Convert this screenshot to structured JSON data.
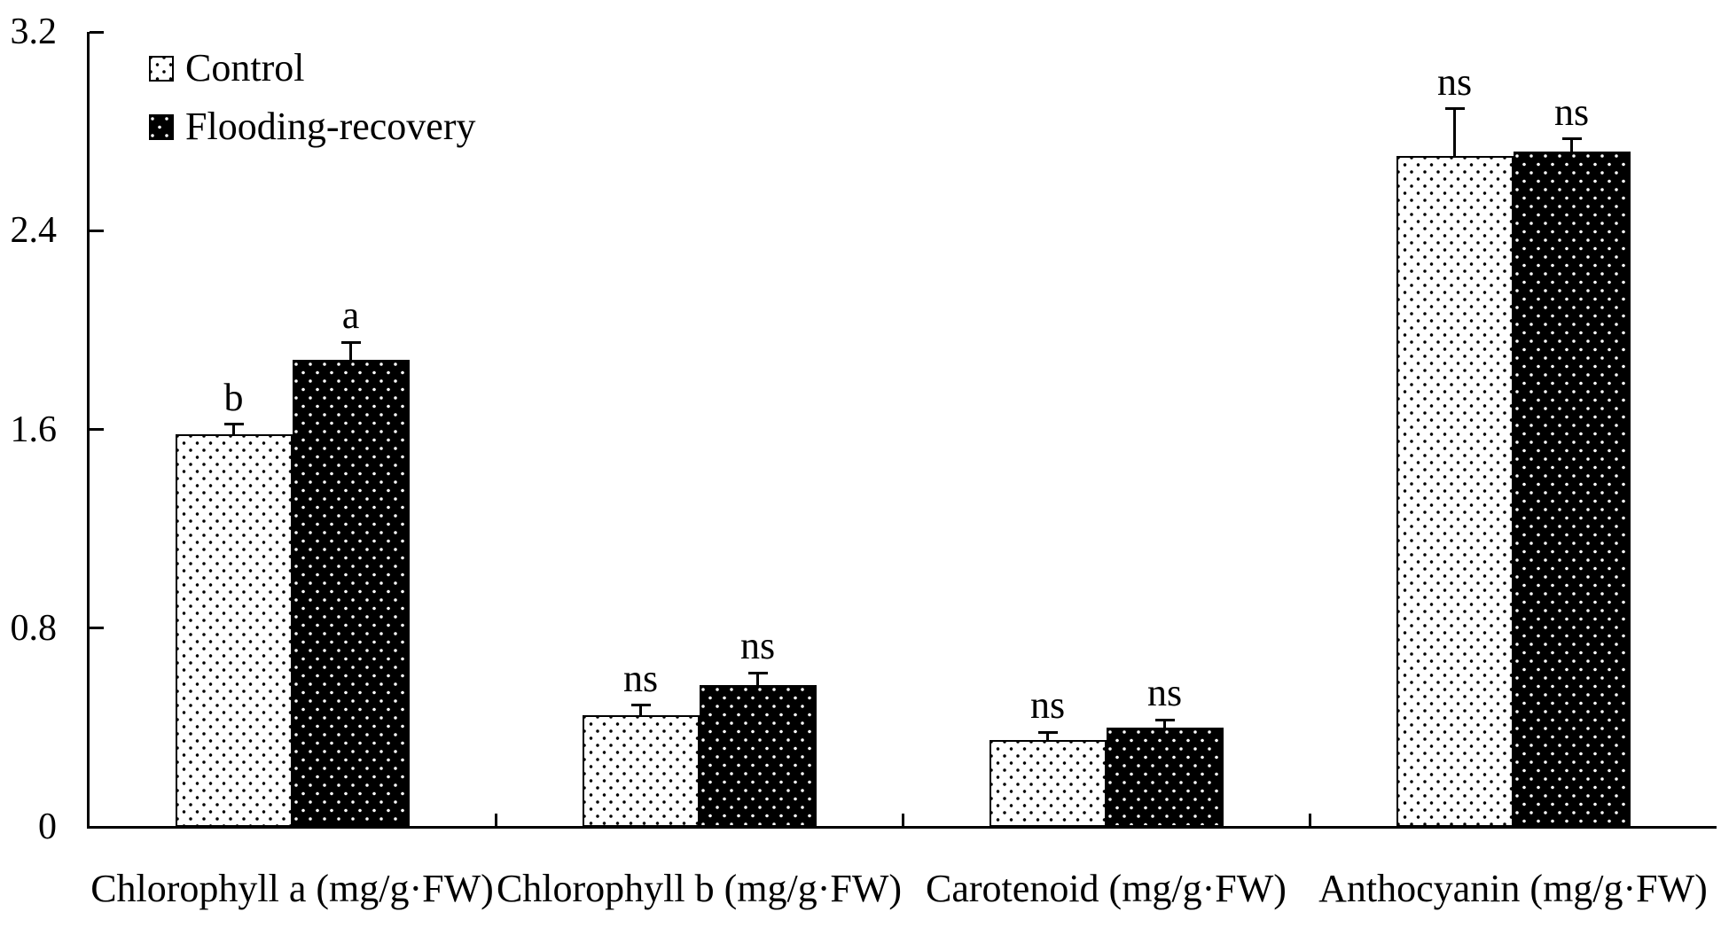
{
  "chart_data": {
    "type": "bar",
    "title": "",
    "xlabel": "",
    "ylabel": "",
    "categories": [
      "Chlorophyll a (mg/g·FW)",
      "Chlorophyll b (mg/g·FW)",
      "Carotenoid (mg/g·FW)",
      "Anthocyanin (mg/g·FW)"
    ],
    "series": [
      {
        "name": "Control",
        "pattern": "black-dots-on-white",
        "values": [
          1.58,
          0.45,
          0.35,
          2.7
        ],
        "errors": [
          0.04,
          0.04,
          0.03,
          0.19
        ],
        "sig_labels": [
          "b",
          "ns",
          "ns",
          "ns"
        ]
      },
      {
        "name": "Flooding-recovery",
        "pattern": "white-dots-on-black",
        "values": [
          1.88,
          0.57,
          0.4,
          2.72
        ],
        "errors": [
          0.07,
          0.05,
          0.03,
          0.05
        ],
        "sig_labels": [
          "a",
          "ns",
          "ns",
          "ns"
        ]
      }
    ],
    "ylim": [
      0,
      3.2
    ],
    "y_ticks": [
      0,
      0.8,
      1.6,
      2.4,
      3.2
    ],
    "y_tick_labels": [
      "0",
      "0.8",
      "1.6",
      "2.4",
      "3.2"
    ],
    "grid": false,
    "legend_position": "top-left-inside",
    "error_bars": "upper-whisker-with-cap",
    "colors": {
      "foreground": "#000000",
      "background": "#ffffff"
    }
  }
}
